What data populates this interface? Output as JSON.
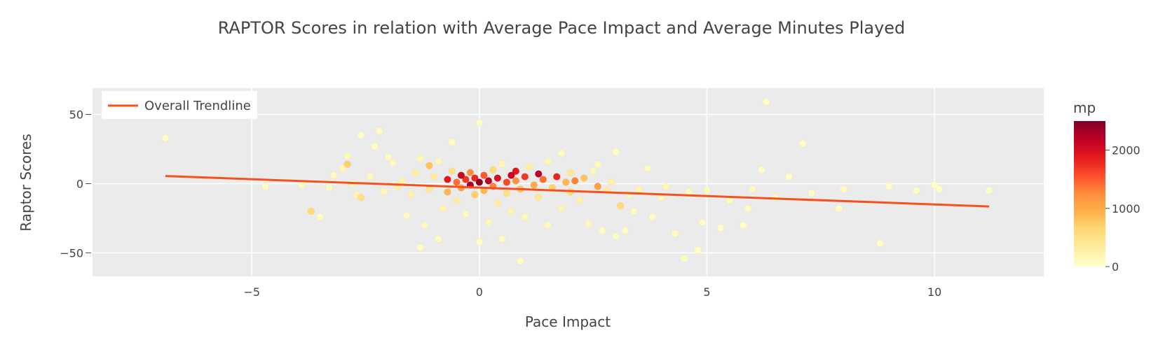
{
  "chart_data": {
    "type": "scatter",
    "title": "RAPTOR Scores in relation with Average Pace Impact and Average Minutes Played",
    "xlabel": "Pace Impact",
    "ylabel": "Raptor Scores",
    "xlim": [
      -8.5,
      12.4
    ],
    "ylim": [
      -67,
      69
    ],
    "x_ticks": [
      -5,
      0,
      5,
      10
    ],
    "x_tick_labels": [
      "−5",
      "0",
      "5",
      "10"
    ],
    "y_ticks": [
      50,
      0,
      -50
    ],
    "y_tick_labels": [
      "50",
      "0",
      "−50"
    ],
    "grid": true,
    "legend": {
      "position": "top-left",
      "entries": [
        "Overall Trendline"
      ]
    },
    "colorbar": {
      "title": "mp",
      "range": [
        0,
        2500
      ],
      "ticks": [
        0,
        1000,
        2000
      ],
      "tick_labels": [
        "0",
        "1000",
        "2000"
      ],
      "colorscale": [
        "#ffffcc",
        "#ffeda0",
        "#fed976",
        "#feb24c",
        "#fd8d3c",
        "#fc4e2a",
        "#e31a1c",
        "#bd0026",
        "#800026"
      ]
    },
    "trendline": {
      "name": "Overall Trendline",
      "color": "#f4511e",
      "x": [
        -6.9,
        11.2
      ],
      "y": [
        5.5,
        -16.5
      ]
    },
    "points": [
      {
        "x": -6.9,
        "y": 33,
        "mp": 40
      },
      {
        "x": -4.7,
        "y": -2,
        "mp": 60
      },
      {
        "x": -3.9,
        "y": -1,
        "mp": 80
      },
      {
        "x": -3.7,
        "y": -20,
        "mp": 600
      },
      {
        "x": -3.5,
        "y": -24,
        "mp": 80
      },
      {
        "x": -3.3,
        "y": -3,
        "mp": 90
      },
      {
        "x": -3.2,
        "y": 6,
        "mp": 100
      },
      {
        "x": -3.0,
        "y": 11,
        "mp": 150
      },
      {
        "x": -2.9,
        "y": 14,
        "mp": 700
      },
      {
        "x": -2.9,
        "y": 20,
        "mp": 100
      },
      {
        "x": -2.8,
        "y": 0,
        "mp": 150
      },
      {
        "x": -2.7,
        "y": -8,
        "mp": 200
      },
      {
        "x": -2.6,
        "y": 35,
        "mp": 60
      },
      {
        "x": -2.6,
        "y": -10,
        "mp": 500
      },
      {
        "x": -2.4,
        "y": 5,
        "mp": 120
      },
      {
        "x": -2.3,
        "y": 27,
        "mp": 60
      },
      {
        "x": -2.2,
        "y": 38,
        "mp": 60
      },
      {
        "x": -2.1,
        "y": -6,
        "mp": 150
      },
      {
        "x": -2.0,
        "y": 19,
        "mp": 80
      },
      {
        "x": -1.9,
        "y": 15,
        "mp": 100
      },
      {
        "x": -1.8,
        "y": -2,
        "mp": 300
      },
      {
        "x": -1.7,
        "y": 2,
        "mp": 200
      },
      {
        "x": -1.6,
        "y": -23,
        "mp": 90
      },
      {
        "x": -1.5,
        "y": -8,
        "mp": 250
      },
      {
        "x": -1.4,
        "y": 8,
        "mp": 300
      },
      {
        "x": -1.3,
        "y": -46,
        "mp": 60
      },
      {
        "x": -1.3,
        "y": 18,
        "mp": 150
      },
      {
        "x": -1.2,
        "y": -30,
        "mp": 100
      },
      {
        "x": -1.1,
        "y": 13,
        "mp": 800
      },
      {
        "x": -1.1,
        "y": -4,
        "mp": 400
      },
      {
        "x": -1.0,
        "y": 5,
        "mp": 350
      },
      {
        "x": -0.9,
        "y": -40,
        "mp": 80
      },
      {
        "x": -0.9,
        "y": 16,
        "mp": 150
      },
      {
        "x": -0.8,
        "y": -18,
        "mp": 200
      },
      {
        "x": -0.7,
        "y": 3,
        "mp": 1900
      },
      {
        "x": -0.7,
        "y": -6,
        "mp": 900
      },
      {
        "x": -0.6,
        "y": 30,
        "mp": 70
      },
      {
        "x": -0.6,
        "y": 9,
        "mp": 500
      },
      {
        "x": -0.5,
        "y": -12,
        "mp": 300
      },
      {
        "x": -0.5,
        "y": 1,
        "mp": 1400
      },
      {
        "x": -0.4,
        "y": 6,
        "mp": 2100
      },
      {
        "x": -0.4,
        "y": -3,
        "mp": 1100
      },
      {
        "x": -0.3,
        "y": -22,
        "mp": 120
      },
      {
        "x": -0.3,
        "y": 3,
        "mp": 1700
      },
      {
        "x": -0.2,
        "y": 8,
        "mp": 1200
      },
      {
        "x": -0.2,
        "y": -1,
        "mp": 2300
      },
      {
        "x": -0.1,
        "y": -8,
        "mp": 700
      },
      {
        "x": -0.1,
        "y": 4,
        "mp": 1800
      },
      {
        "x": 0.0,
        "y": 44,
        "mp": 60
      },
      {
        "x": 0.0,
        "y": -42,
        "mp": 70
      },
      {
        "x": 0.0,
        "y": 1,
        "mp": 2400
      },
      {
        "x": 0.1,
        "y": 6,
        "mp": 1500
      },
      {
        "x": 0.1,
        "y": -5,
        "mp": 900
      },
      {
        "x": 0.2,
        "y": -28,
        "mp": 150
      },
      {
        "x": 0.2,
        "y": 2,
        "mp": 2200
      },
      {
        "x": 0.3,
        "y": 10,
        "mp": 600
      },
      {
        "x": 0.3,
        "y": -2,
        "mp": 1300
      },
      {
        "x": 0.4,
        "y": 4,
        "mp": 2000
      },
      {
        "x": 0.4,
        "y": -14,
        "mp": 300
      },
      {
        "x": 0.5,
        "y": -40,
        "mp": 80
      },
      {
        "x": 0.5,
        "y": 14,
        "mp": 150
      },
      {
        "x": 0.6,
        "y": 1,
        "mp": 1600
      },
      {
        "x": 0.6,
        "y": -7,
        "mp": 500
      },
      {
        "x": 0.7,
        "y": 6,
        "mp": 2100
      },
      {
        "x": 0.7,
        "y": -20,
        "mp": 200
      },
      {
        "x": 0.8,
        "y": 2,
        "mp": 1200
      },
      {
        "x": 0.8,
        "y": 9,
        "mp": 1900
      },
      {
        "x": 0.9,
        "y": -56,
        "mp": 70
      },
      {
        "x": 0.9,
        "y": -4,
        "mp": 800
      },
      {
        "x": 1.0,
        "y": 5,
        "mp": 1700
      },
      {
        "x": 1.0,
        "y": -24,
        "mp": 120
      },
      {
        "x": 1.1,
        "y": 12,
        "mp": 300
      },
      {
        "x": 1.2,
        "y": -1,
        "mp": 1000
      },
      {
        "x": 1.3,
        "y": 7,
        "mp": 2200
      },
      {
        "x": 1.3,
        "y": -10,
        "mp": 400
      },
      {
        "x": 1.4,
        "y": 3,
        "mp": 1400
      },
      {
        "x": 1.5,
        "y": -30,
        "mp": 100
      },
      {
        "x": 1.5,
        "y": 16,
        "mp": 150
      },
      {
        "x": 1.6,
        "y": -3,
        "mp": 700
      },
      {
        "x": 1.7,
        "y": 5,
        "mp": 1800
      },
      {
        "x": 1.8,
        "y": -18,
        "mp": 200
      },
      {
        "x": 1.8,
        "y": 22,
        "mp": 80
      },
      {
        "x": 1.9,
        "y": 1,
        "mp": 900
      },
      {
        "x": 2.0,
        "y": 8,
        "mp": 400
      },
      {
        "x": 2.0,
        "y": -6,
        "mp": 600
      },
      {
        "x": 2.1,
        "y": 2,
        "mp": 1300
      },
      {
        "x": 2.2,
        "y": -12,
        "mp": 250
      },
      {
        "x": 2.3,
        "y": 4,
        "mp": 800
      },
      {
        "x": 2.4,
        "y": -29,
        "mp": 100
      },
      {
        "x": 2.5,
        "y": 9,
        "mp": 150
      },
      {
        "x": 2.6,
        "y": -2,
        "mp": 1100
      },
      {
        "x": 2.6,
        "y": 14,
        "mp": 100
      },
      {
        "x": 2.7,
        "y": -34,
        "mp": 80
      },
      {
        "x": 2.8,
        "y": -5,
        "mp": 350
      },
      {
        "x": 2.9,
        "y": 1,
        "mp": 250
      },
      {
        "x": 3.0,
        "y": -38,
        "mp": 80
      },
      {
        "x": 3.0,
        "y": 23,
        "mp": 60
      },
      {
        "x": 3.1,
        "y": -16,
        "mp": 600
      },
      {
        "x": 3.2,
        "y": -34,
        "mp": 70
      },
      {
        "x": 3.3,
        "y": -8,
        "mp": 150
      },
      {
        "x": 3.4,
        "y": -20,
        "mp": 100
      },
      {
        "x": 3.5,
        "y": -4,
        "mp": 200
      },
      {
        "x": 3.7,
        "y": 11,
        "mp": 80
      },
      {
        "x": 3.8,
        "y": -24,
        "mp": 90
      },
      {
        "x": 4.0,
        "y": -10,
        "mp": 120
      },
      {
        "x": 4.1,
        "y": -2,
        "mp": 150
      },
      {
        "x": 4.3,
        "y": -36,
        "mp": 70
      },
      {
        "x": 4.5,
        "y": -54,
        "mp": 60
      },
      {
        "x": 4.6,
        "y": -6,
        "mp": 100
      },
      {
        "x": 4.8,
        "y": -48,
        "mp": 60
      },
      {
        "x": 4.9,
        "y": -28,
        "mp": 70
      },
      {
        "x": 5.0,
        "y": -5,
        "mp": 100
      },
      {
        "x": 5.3,
        "y": -32,
        "mp": 70
      },
      {
        "x": 5.5,
        "y": -12,
        "mp": 90
      },
      {
        "x": 5.8,
        "y": -30,
        "mp": 60
      },
      {
        "x": 5.9,
        "y": -18,
        "mp": 80
      },
      {
        "x": 6.0,
        "y": -4,
        "mp": 100
      },
      {
        "x": 6.2,
        "y": 10,
        "mp": 60
      },
      {
        "x": 6.3,
        "y": 59,
        "mp": 50
      },
      {
        "x": 6.5,
        "y": -10,
        "mp": 80
      },
      {
        "x": 6.8,
        "y": 5,
        "mp": 60
      },
      {
        "x": 7.1,
        "y": 29,
        "mp": 50
      },
      {
        "x": 7.3,
        "y": -7,
        "mp": 70
      },
      {
        "x": 7.9,
        "y": -18,
        "mp": 60
      },
      {
        "x": 8.0,
        "y": -4,
        "mp": 70
      },
      {
        "x": 8.8,
        "y": -43,
        "mp": 50
      },
      {
        "x": 9.0,
        "y": -2,
        "mp": 60
      },
      {
        "x": 9.6,
        "y": -5,
        "mp": 60
      },
      {
        "x": 10.0,
        "y": -1,
        "mp": 60
      },
      {
        "x": 10.1,
        "y": -4,
        "mp": 60
      },
      {
        "x": 11.2,
        "y": -5,
        "mp": 50
      }
    ]
  }
}
